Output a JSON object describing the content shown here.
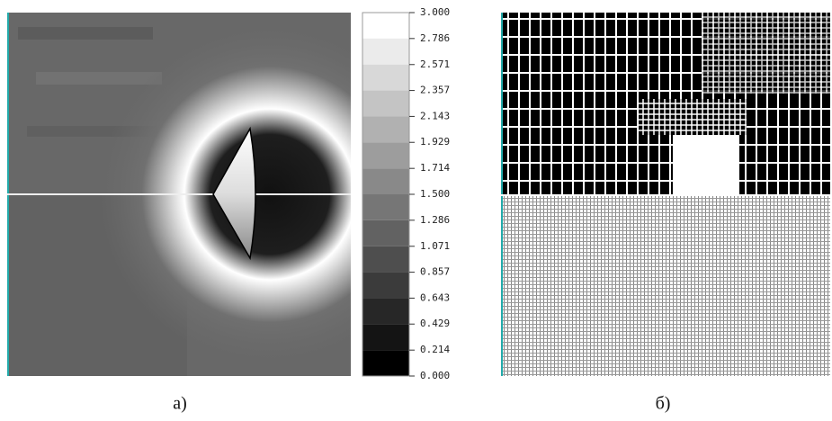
{
  "panels": [
    {
      "label": "а)",
      "colorbar": {
        "ticks": [
          {
            "value": 3,
            "label": "3.000"
          },
          {
            "value": 2.786,
            "label": "2.786"
          },
          {
            "value": 2.571,
            "label": "2.571"
          },
          {
            "value": 2.357,
            "label": "2.357"
          },
          {
            "value": 2.143,
            "label": "2.143"
          },
          {
            "value": 1.929,
            "label": "1.929"
          },
          {
            "value": 1.714,
            "label": "1.714"
          },
          {
            "value": 1.5,
            "label": "1.500"
          },
          {
            "value": 1.286,
            "label": "1.286"
          },
          {
            "value": 1.071,
            "label": "1.071"
          },
          {
            "value": 0.857,
            "label": "0.857"
          },
          {
            "value": 0.643,
            "label": "0.643"
          },
          {
            "value": 0.429,
            "label": "0.429"
          },
          {
            "value": 0.214,
            "label": "0.214"
          },
          {
            "value": 0,
            "label": "0.000"
          }
        ]
      }
    },
    {
      "label": "б)"
    }
  ]
}
